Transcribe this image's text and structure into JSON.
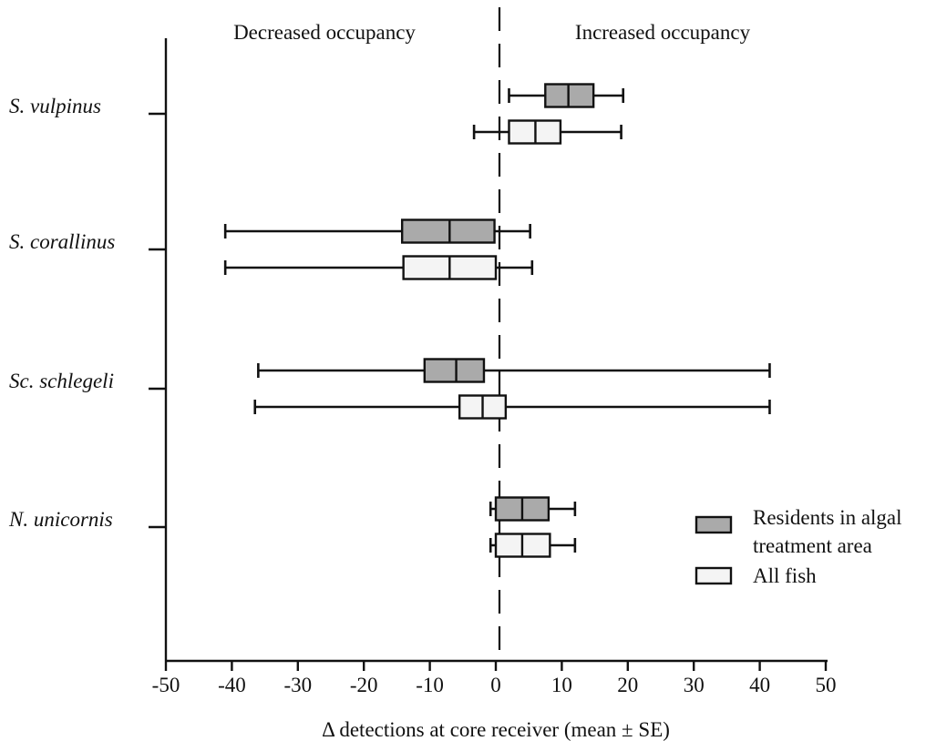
{
  "chart_data": {
    "type": "box",
    "orientation": "horizontal",
    "xlabel": "Δ detections at core receiver (mean ± SE)",
    "xlim": [
      -50,
      50
    ],
    "x_ticks": [
      -50,
      -40,
      -30,
      -20,
      -10,
      0,
      10,
      20,
      30,
      40,
      50
    ],
    "x_tick_labels": [
      "-50",
      "-40",
      "-30",
      "-20",
      "-10",
      "0",
      "10",
      "20",
      "30",
      "40",
      "50"
    ],
    "reference_line": {
      "x": 0,
      "style": "dashed"
    },
    "region_labels": {
      "left": "Decreased occupancy",
      "right": "Increased occupancy"
    },
    "categories": [
      "S. vulpinus",
      "S. corallinus",
      "Sc. schlegeli",
      "N. unicornis"
    ],
    "legend": {
      "placement": "right"
    },
    "series": [
      {
        "name": "Residents in algal treatment area",
        "legend_lines": [
          "Residents in algal",
          "treatment area"
        ],
        "color": "#aaaaaa",
        "boxes": [
          {
            "whisker_low": 2,
            "q1": 7.5,
            "median": 11,
            "q3": 14.8,
            "whisker_high": 19.3
          },
          {
            "whisker_low": -41,
            "q1": -14.2,
            "median": -7,
            "q3": -0.2,
            "whisker_high": 5.2
          },
          {
            "whisker_low": -36,
            "q1": -10.8,
            "median": -6,
            "q3": -1.8,
            "whisker_high": 41.5
          },
          {
            "whisker_low": -0.8,
            "q1": 0,
            "median": 4,
            "q3": 8,
            "whisker_high": 12
          }
        ]
      },
      {
        "name": "All fish",
        "legend_lines": [
          "All fish"
        ],
        "color": "#f4f4f4",
        "boxes": [
          {
            "whisker_low": -3.3,
            "q1": 2,
            "median": 6,
            "q3": 9.8,
            "whisker_high": 19
          },
          {
            "whisker_low": -41,
            "q1": -14,
            "median": -7,
            "q3": 0,
            "whisker_high": 5.5
          },
          {
            "whisker_low": -36.5,
            "q1": -5.5,
            "median": -2,
            "q3": 1.5,
            "whisker_high": 41.5
          },
          {
            "whisker_low": -0.8,
            "q1": 0,
            "median": 4,
            "q3": 8.2,
            "whisker_high": 12
          }
        ]
      }
    ]
  }
}
